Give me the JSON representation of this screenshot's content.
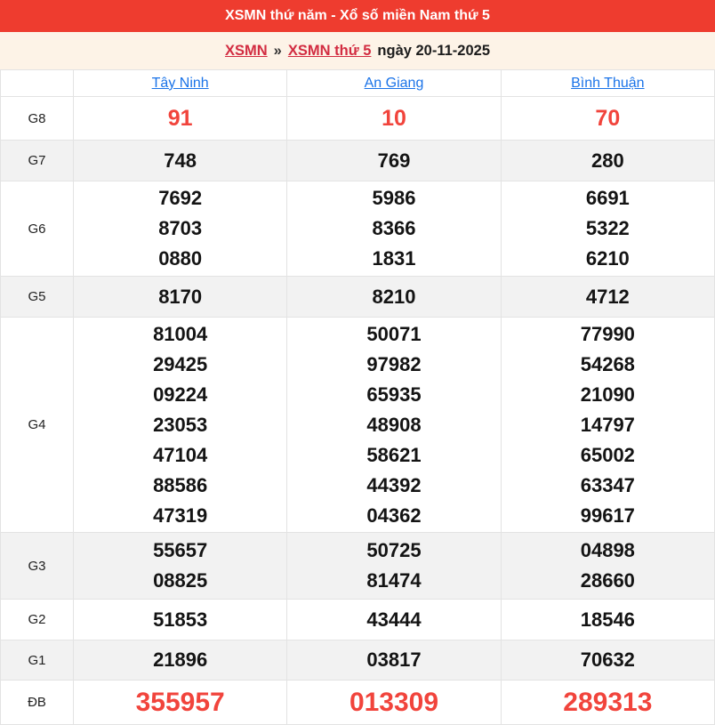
{
  "title_bar": {
    "text": "XSMN thứ năm - Xổ số miền Nam thứ 5"
  },
  "breadcrumb": {
    "links": [
      {
        "label": "XSMN"
      },
      {
        "label": "XSMN thứ 5"
      }
    ],
    "separator": "»",
    "date_text": "ngày 20-11-2025"
  },
  "table": {
    "provinces": [
      {
        "label": "Tây Ninh"
      },
      {
        "label": "An Giang"
      },
      {
        "label": "Bình Thuận"
      }
    ],
    "rows": [
      {
        "key": "G8",
        "prize": "G8",
        "style": "red",
        "values": [
          [
            "91"
          ],
          [
            "10"
          ],
          [
            "70"
          ]
        ]
      },
      {
        "key": "G7",
        "prize": "G7",
        "style": "normal",
        "values": [
          [
            "748"
          ],
          [
            "769"
          ],
          [
            "280"
          ]
        ]
      },
      {
        "key": "G6",
        "prize": "G6",
        "style": "normal",
        "values": [
          [
            "7692",
            "8703",
            "0880"
          ],
          [
            "5986",
            "8366",
            "1831"
          ],
          [
            "6691",
            "5322",
            "6210"
          ]
        ]
      },
      {
        "key": "G5",
        "prize": "G5",
        "style": "normal",
        "values": [
          [
            "8170"
          ],
          [
            "8210"
          ],
          [
            "4712"
          ]
        ]
      },
      {
        "key": "G4",
        "prize": "G4",
        "style": "normal",
        "values": [
          [
            "81004",
            "29425",
            "09224",
            "23053",
            "47104",
            "88586",
            "47319"
          ],
          [
            "50071",
            "97982",
            "65935",
            "48908",
            "58621",
            "44392",
            "04362"
          ],
          [
            "77990",
            "54268",
            "21090",
            "14797",
            "65002",
            "63347",
            "99617"
          ]
        ]
      },
      {
        "key": "G3",
        "prize": "G3",
        "style": "normal",
        "values": [
          [
            "55657",
            "08825"
          ],
          [
            "50725",
            "81474"
          ],
          [
            "04898",
            "28660"
          ]
        ]
      },
      {
        "key": "G2",
        "prize": "G2",
        "style": "normal",
        "values": [
          [
            "51853"
          ],
          [
            "43444"
          ],
          [
            "18546"
          ]
        ]
      },
      {
        "key": "G1",
        "prize": "G1",
        "style": "normal",
        "values": [
          [
            "21896"
          ],
          [
            "03817"
          ],
          [
            "70632"
          ]
        ]
      },
      {
        "key": "DB",
        "prize": "ĐB",
        "style": "jackpot",
        "values": [
          [
            "355957"
          ],
          [
            "013309"
          ],
          [
            "289313"
          ]
        ]
      }
    ]
  },
  "colors": {
    "header_bg": "#ee3c2f",
    "header_text": "#ffffff",
    "breadcrumb_bg": "#fdf3e7",
    "breadcrumb_link": "#d22c41",
    "province_link": "#1a73e8",
    "number_red": "#f1443c",
    "number_black": "#141414",
    "stripe_bg": "#f2f2f2",
    "border": "#e3e3e3"
  }
}
